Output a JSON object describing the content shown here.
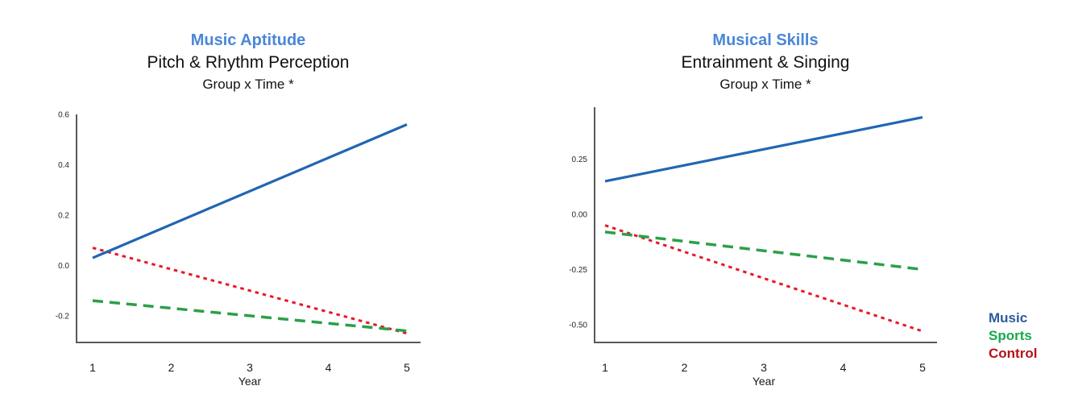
{
  "legend": {
    "items": [
      {
        "label": "Music",
        "color": "#2E5B9D"
      },
      {
        "label": "Sports",
        "color": "#17A94E"
      },
      {
        "label": "Control",
        "color": "#B5121B"
      }
    ]
  },
  "chart_data": [
    {
      "type": "line",
      "title": "Music Aptitude",
      "title_color": "#4A86D8",
      "subtitle": "Pitch & Rhythm Perception",
      "annotation": "Group x Time *",
      "xlabel": "Year",
      "x": [
        1,
        5
      ],
      "xticks": [
        1,
        2,
        3,
        4,
        5
      ],
      "yticks": [
        0.6,
        0.4,
        0.2,
        0.0,
        -0.2
      ],
      "ytick_labels": [
        "0.6",
        "0.4",
        "0.2",
        "0.0",
        "-0.2"
      ],
      "ylim": [
        -0.306,
        0.6
      ],
      "grid": false,
      "series": [
        {
          "name": "Control",
          "color": "#E5192C",
          "style": "dotted",
          "values": [
            0.07,
            -0.27
          ]
        },
        {
          "name": "Sports",
          "color": "#2BA048",
          "style": "dashed",
          "values": [
            -0.14,
            -0.26
          ]
        },
        {
          "name": "Music",
          "color": "#2166B3",
          "style": "solid",
          "values": [
            0.03,
            0.56
          ]
        }
      ]
    },
    {
      "type": "line",
      "title": "Musical Skills",
      "title_color": "#4A86D8",
      "subtitle": "Entrainment & Singing",
      "annotation": "Group x Time *",
      "xlabel": "Year",
      "x": [
        1,
        5
      ],
      "xticks": [
        1,
        2,
        3,
        4,
        5
      ],
      "yticks": [
        0.25,
        0.0,
        -0.25,
        -0.5
      ],
      "ytick_labels": [
        "0.25",
        "0.00",
        "-0.25",
        "-0.50"
      ],
      "ylim": [
        -0.581,
        0.486
      ],
      "grid": false,
      "series": [
        {
          "name": "Control",
          "color": "#E5192C",
          "style": "dotted",
          "values": [
            -0.05,
            -0.53
          ]
        },
        {
          "name": "Sports",
          "color": "#2BA048",
          "style": "dashed",
          "values": [
            -0.08,
            -0.25
          ]
        },
        {
          "name": "Music",
          "color": "#2166B3",
          "style": "solid",
          "values": [
            0.15,
            0.44
          ]
        }
      ]
    }
  ]
}
